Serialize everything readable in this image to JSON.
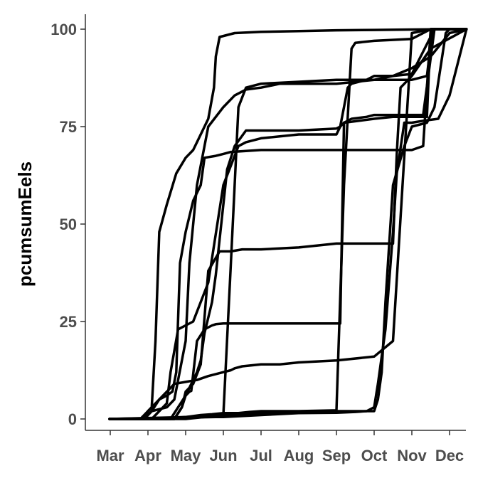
{
  "chart_data": {
    "type": "line",
    "title": "",
    "xlabel": "",
    "ylabel": "pcumsumEels",
    "xlim": [
      -0.02,
      9.45
    ],
    "ylim": [
      -3,
      103
    ],
    "x_ticks": [
      {
        "label": "Mar",
        "value": 0
      },
      {
        "label": "Apr",
        "value": 1
      },
      {
        "label": "May",
        "value": 2
      },
      {
        "label": "Jun",
        "value": 3
      },
      {
        "label": "Jul",
        "value": 4
      },
      {
        "label": "Aug",
        "value": 5
      },
      {
        "label": "Sep",
        "value": 6
      },
      {
        "label": "Oct",
        "value": 7
      },
      {
        "label": "Nov",
        "value": 8
      },
      {
        "label": "Dec",
        "value": 9
      }
    ],
    "y_ticks": [
      0,
      25,
      50,
      75,
      100
    ],
    "grid": false,
    "legend": "none",
    "line_color": "#000000",
    "series": [
      {
        "x": [
          -0.02,
          0.8,
          1.1,
          1.2,
          1.3,
          1.5,
          1.75,
          2.0,
          2.2,
          2.35,
          2.6,
          2.75,
          2.8,
          2.9,
          3.3,
          4,
          5,
          6,
          7,
          8,
          9,
          9.45
        ],
        "y": [
          0,
          0,
          3,
          20,
          48,
          55,
          63,
          67,
          69,
          72,
          77,
          85,
          93,
          98,
          99,
          99.3,
          99.5,
          99.7,
          99.8,
          99.9,
          100,
          100
        ]
      },
      {
        "x": [
          -0.02,
          0.9,
          1.1,
          1.3,
          1.5,
          1.65,
          1.75,
          1.85,
          2.0,
          2.2,
          2.4,
          2.5,
          2.8,
          3.0,
          3.2,
          4,
          5,
          6,
          7,
          8,
          8.3,
          8.4,
          8.5,
          9.45
        ],
        "y": [
          0,
          0,
          2,
          5,
          6,
          7,
          12,
          40,
          48,
          56,
          60,
          67,
          67.5,
          68,
          68.5,
          69,
          69,
          69,
          69,
          69,
          70,
          85,
          100,
          100
        ]
      },
      {
        "x": [
          -0.02,
          0.9,
          1.0,
          1.2,
          1.4,
          1.6,
          1.7,
          2.0,
          2.3,
          2.6,
          3.0,
          3.2,
          3.3,
          3.5,
          4.0,
          4.5,
          5,
          6,
          7,
          7.5,
          8.0,
          8.5,
          9.45
        ],
        "y": [
          0,
          0,
          2,
          4,
          6,
          8,
          9,
          9.5,
          10,
          11,
          12,
          12.5,
          13,
          13.5,
          14,
          14,
          14.5,
          15,
          16,
          20,
          99,
          100,
          100
        ]
      },
      {
        "x": [
          -0.02,
          2.8,
          3.0,
          3.2,
          3.4,
          3.6,
          4.0,
          5,
          6,
          7,
          7.5,
          8,
          8.4,
          8.55,
          9.45
        ],
        "y": [
          0,
          0.5,
          1,
          40,
          80,
          85,
          86,
          86.5,
          87,
          87,
          87,
          87,
          88,
          100,
          100
        ]
      },
      {
        "x": [
          -0.02,
          2.0,
          2.4,
          2.7,
          3.0,
          3.4,
          3.7,
          4.0,
          4.3,
          5,
          6,
          6.2,
          6.4,
          6.5,
          7,
          8,
          8.5,
          9.45
        ],
        "y": [
          0,
          0.5,
          1,
          1.2,
          1.5,
          1.5,
          1.8,
          2,
          2,
          2,
          2.2,
          60,
          95,
          96.5,
          97,
          97.5,
          100,
          100
        ]
      },
      {
        "x": [
          -0.02,
          0.9,
          1.1,
          1.5,
          1.7,
          1.9,
          2.0,
          2.1,
          2.3,
          2.6,
          3.0,
          3.3,
          3.6,
          4.0,
          4.5,
          5,
          5.5,
          6,
          6.5,
          7,
          7.5,
          8.0,
          8.5,
          9.0,
          9.45
        ],
        "y": [
          0,
          0,
          2,
          3,
          5,
          15,
          20,
          40,
          60,
          75,
          80,
          83,
          84.5,
          85,
          86,
          86,
          86,
          86,
          86.5,
          87,
          88,
          90,
          93,
          99,
          100
        ]
      },
      {
        "x": [
          -0.02,
          1.7,
          1.9,
          2.0,
          2.1,
          2.15,
          2.3,
          2.5,
          2.7,
          2.8,
          3.0,
          4,
          5,
          5.5,
          6.1,
          6.2,
          7,
          7.5,
          7.7,
          8.0,
          8.2,
          8.4,
          8.5,
          9.45
        ],
        "y": [
          0,
          0,
          3,
          6,
          7,
          7.2,
          20,
          23,
          24,
          24.3,
          24.5,
          24.5,
          24.5,
          24.5,
          24.5,
          76,
          77,
          77.5,
          77.5,
          77.5,
          77.5,
          77.5,
          100,
          100
        ]
      },
      {
        "x": [
          -0.02,
          1.7,
          1.9,
          2.0,
          2.2,
          2.4,
          2.6,
          2.9,
          3.0,
          3.2,
          3.5,
          4,
          5,
          6,
          7,
          7.5,
          7.6,
          7.7,
          8,
          8.5,
          9.45
        ],
        "y": [
          0,
          0,
          3,
          7,
          9,
          14,
          38,
          43,
          43,
          43,
          43.5,
          43.5,
          44,
          45,
          45,
          45,
          68,
          85,
          88,
          95,
          100
        ]
      },
      {
        "x": [
          -0.02,
          1.6,
          1.8,
          2.0,
          2.1,
          2.2,
          2.3,
          2.4,
          2.5,
          2.7,
          2.8,
          3.0,
          3.1,
          3.3,
          3.6,
          4.0,
          5,
          6,
          6.1,
          6.2,
          6.4,
          6.8,
          7,
          7.5,
          8,
          8.3,
          8.6,
          9.45
        ],
        "y": [
          0,
          0,
          3,
          6,
          8,
          10,
          12,
          15,
          22,
          30,
          37,
          55,
          64,
          70,
          74,
          74,
          74,
          74.5,
          75,
          76,
          77,
          77.5,
          78,
          78,
          78,
          78,
          100,
          100
        ]
      },
      {
        "x": [
          -0.02,
          1.1,
          1.3,
          1.5,
          1.6,
          1.8,
          2.0,
          2.2,
          2.4,
          2.6,
          3.0,
          3.4,
          3.6,
          4.0,
          5,
          6,
          6.1,
          6.3,
          6.4,
          6.8,
          7,
          7.5,
          8,
          8.6,
          9.45
        ],
        "y": [
          0,
          0,
          2,
          4,
          12,
          23,
          24,
          25,
          30,
          35,
          60,
          70,
          71,
          72,
          73,
          73,
          75,
          85,
          86,
          87,
          88,
          88,
          88.5,
          100,
          100
        ]
      },
      {
        "x": [
          -0.02,
          2.0,
          2.5,
          3.0,
          4,
          5,
          6,
          6.5,
          6.8,
          7.0,
          7.1,
          7.3,
          7.5,
          7.6,
          7.8,
          8,
          8.3,
          8.7,
          9.0,
          9.45
        ],
        "y": [
          0,
          0,
          0.5,
          0.5,
          1,
          1.5,
          1.6,
          1.8,
          2,
          3,
          9,
          23,
          48,
          63,
          76,
          76,
          76.5,
          77,
          83,
          100
        ]
      },
      {
        "x": [
          -0.02,
          1.5,
          2.0,
          3,
          4,
          5,
          6,
          6.6,
          6.8,
          7.0,
          7.1,
          7.2,
          7.3,
          7.5,
          7.8,
          8.0,
          8.4,
          8.6,
          8.9,
          9.0,
          9.45
        ],
        "y": [
          0,
          0,
          0.5,
          1,
          1.5,
          1.8,
          2,
          2,
          2,
          2,
          5,
          12,
          30,
          60,
          70,
          75,
          76,
          80,
          99,
          100,
          100
        ]
      }
    ]
  }
}
